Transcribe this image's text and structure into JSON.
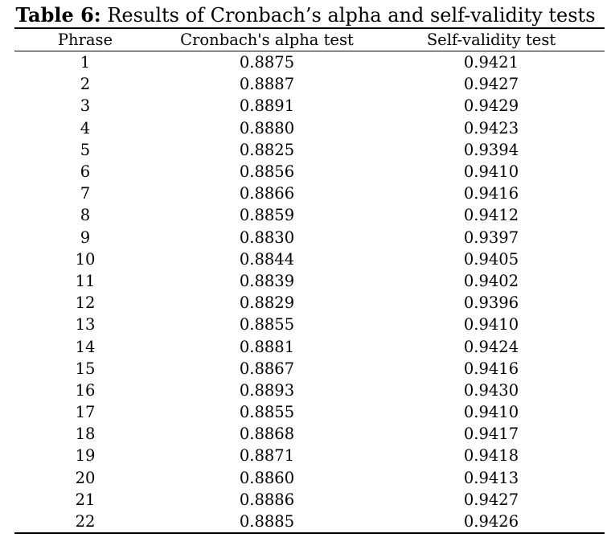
{
  "caption": {
    "label": "Table 6:",
    "text": "Results of Cronbach’s alpha and self-validity tests"
  },
  "table": {
    "headers": [
      "Phrase",
      "Cronbach's alpha test",
      "Self-validity test"
    ],
    "rows": [
      [
        "1",
        "0.8875",
        "0.9421"
      ],
      [
        "2",
        "0.8887",
        "0.9427"
      ],
      [
        "3",
        "0.8891",
        "0.9429"
      ],
      [
        "4",
        "0.8880",
        "0.9423"
      ],
      [
        "5",
        "0.8825",
        "0.9394"
      ],
      [
        "6",
        "0.8856",
        "0.9410"
      ],
      [
        "7",
        "0.8866",
        "0.9416"
      ],
      [
        "8",
        "0.8859",
        "0.9412"
      ],
      [
        "9",
        "0.8830",
        "0.9397"
      ],
      [
        "10",
        "0.8844",
        "0.9405"
      ],
      [
        "11",
        "0.8839",
        "0.9402"
      ],
      [
        "12",
        "0.8829",
        "0.9396"
      ],
      [
        "13",
        "0.8855",
        "0.9410"
      ],
      [
        "14",
        "0.8881",
        "0.9424"
      ],
      [
        "15",
        "0.8867",
        "0.9416"
      ],
      [
        "16",
        "0.8893",
        "0.9430"
      ],
      [
        "17",
        "0.8855",
        "0.9410"
      ],
      [
        "18",
        "0.8868",
        "0.9417"
      ],
      [
        "19",
        "0.8871",
        "0.9418"
      ],
      [
        "20",
        "0.8860",
        "0.9413"
      ],
      [
        "21",
        "0.8886",
        "0.9427"
      ],
      [
        "22",
        "0.8885",
        "0.9426"
      ]
    ]
  }
}
